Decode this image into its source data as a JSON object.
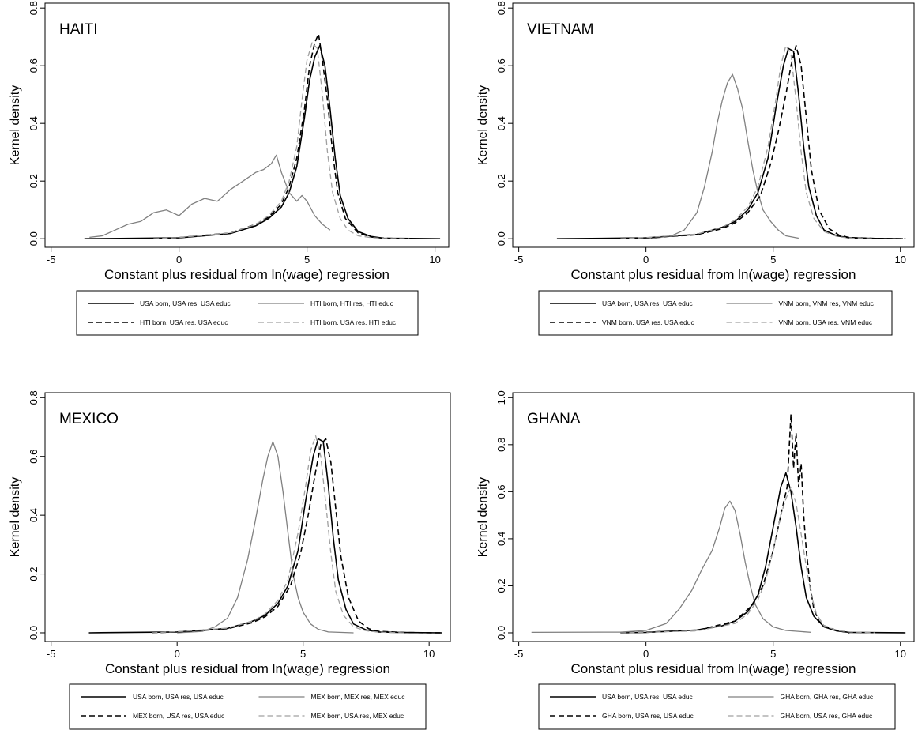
{
  "chart_data": [
    {
      "type": "line",
      "title": "HAITI",
      "xlabel": "Constant plus residual from ln(wage) regression",
      "ylabel": "Kernel density",
      "xlim": [
        -5,
        10.3
      ],
      "ylim": [
        0,
        0.8
      ],
      "xticks": [
        "-5",
        "0",
        "5",
        "10"
      ],
      "yticks": [
        "0.0",
        "0.2",
        "0.4",
        "0.6",
        "0.8"
      ],
      "legend": "bottom",
      "series": [
        {
          "name": "USA born, USA res, USA educ",
          "color": "#000000",
          "dash": "solid",
          "x": [
            -3.7,
            0,
            2,
            3,
            3.5,
            4,
            4.3,
            4.6,
            4.9,
            5.1,
            5.3,
            5.5,
            5.7,
            5.9,
            6.1,
            6.3,
            6.6,
            7.0,
            7.5,
            8.0,
            10.2
          ],
          "y": [
            0,
            0.003,
            0.018,
            0.045,
            0.07,
            0.11,
            0.16,
            0.25,
            0.42,
            0.55,
            0.63,
            0.67,
            0.6,
            0.45,
            0.28,
            0.15,
            0.07,
            0.025,
            0.008,
            0.002,
            0
          ]
        },
        {
          "name": "HTI born, HTI res, HTI educ",
          "color": "#808080",
          "dash": "solid",
          "x": [
            -3.5,
            -3,
            -2.5,
            -2,
            -1.5,
            -1,
            -0.5,
            0,
            0.5,
            1,
            1.5,
            2,
            2.5,
            3,
            3.3,
            3.6,
            3.8,
            4.0,
            4.3,
            4.6,
            4.8,
            5.0,
            5.3,
            5.6,
            5.9
          ],
          "y": [
            0.005,
            0.01,
            0.03,
            0.05,
            0.06,
            0.09,
            0.1,
            0.08,
            0.12,
            0.14,
            0.13,
            0.17,
            0.2,
            0.23,
            0.24,
            0.26,
            0.29,
            0.23,
            0.16,
            0.13,
            0.15,
            0.13,
            0.08,
            0.05,
            0.03
          ]
        },
        {
          "name": "HTI born, USA res, USA educ",
          "color": "#000000",
          "dash": "dashed",
          "x": [
            -1,
            0,
            2,
            3,
            3.5,
            4,
            4.3,
            4.6,
            4.9,
            5.1,
            5.3,
            5.45,
            5.6,
            5.8,
            6.0,
            6.2,
            6.5,
            7.0,
            7.5,
            8.0,
            9.0
          ],
          "y": [
            0,
            0.004,
            0.02,
            0.05,
            0.075,
            0.12,
            0.18,
            0.28,
            0.45,
            0.6,
            0.68,
            0.71,
            0.62,
            0.48,
            0.3,
            0.16,
            0.07,
            0.02,
            0.006,
            0.002,
            0
          ]
        },
        {
          "name": "HTI born, USA res, HTI educ",
          "color": "#a0a0a0",
          "dash": "dashed",
          "x": [
            -1,
            0,
            2,
            3,
            3.5,
            4,
            4.3,
            4.6,
            4.8,
            5.0,
            5.2,
            5.4,
            5.6,
            5.8,
            6.0,
            6.3,
            6.6,
            7.0,
            7.5,
            8.0,
            9.0
          ],
          "y": [
            0,
            0.004,
            0.02,
            0.05,
            0.08,
            0.13,
            0.2,
            0.32,
            0.48,
            0.62,
            0.68,
            0.66,
            0.5,
            0.3,
            0.16,
            0.07,
            0.03,
            0.01,
            0.004,
            0.001,
            0
          ]
        }
      ]
    },
    {
      "type": "line",
      "title": "VIETNAM",
      "xlabel": "Constant plus residual from ln(wage) regression",
      "ylabel": "Kernel density",
      "xlim": [
        -5,
        10.3
      ],
      "ylim": [
        0,
        0.8
      ],
      "xticks": [
        "-5",
        "0",
        "5",
        "10"
      ],
      "yticks": [
        "0.0",
        "0.2",
        "0.4",
        "0.6",
        "0.8"
      ],
      "legend": "bottom",
      "series": [
        {
          "name": "USA born, USA res, USA educ",
          "color": "#000000",
          "dash": "solid",
          "x": [
            -3.5,
            0,
            2,
            3,
            3.5,
            4,
            4.4,
            4.8,
            5.1,
            5.4,
            5.6,
            5.8,
            6.0,
            6.2,
            6.4,
            6.7,
            7.0,
            7.5,
            8.0,
            9.0,
            10.1
          ],
          "y": [
            0,
            0.003,
            0.015,
            0.04,
            0.06,
            0.1,
            0.16,
            0.28,
            0.45,
            0.6,
            0.66,
            0.65,
            0.5,
            0.32,
            0.18,
            0.08,
            0.03,
            0.01,
            0.003,
            0.001,
            0
          ]
        },
        {
          "name": "VNM born, VNM res, VNM educ",
          "color": "#808080",
          "dash": "solid",
          "x": [
            0.2,
            1,
            1.5,
            2.0,
            2.3,
            2.6,
            2.8,
            3.0,
            3.2,
            3.4,
            3.6,
            3.8,
            4.0,
            4.2,
            4.4,
            4.6,
            4.9,
            5.2,
            5.5,
            6.0
          ],
          "y": [
            0,
            0.01,
            0.03,
            0.09,
            0.18,
            0.3,
            0.4,
            0.48,
            0.54,
            0.57,
            0.52,
            0.45,
            0.34,
            0.24,
            0.16,
            0.1,
            0.06,
            0.03,
            0.01,
            0.002
          ]
        },
        {
          "name": "VNM born, USA res, USA educ",
          "color": "#000000",
          "dash": "dashed",
          "x": [
            -1,
            0,
            2,
            3,
            3.5,
            4,
            4.5,
            4.9,
            5.2,
            5.5,
            5.7,
            5.9,
            6.1,
            6.3,
            6.5,
            6.8,
            7.2,
            7.6,
            8.0,
            9.0,
            10.2
          ],
          "y": [
            0,
            0.003,
            0.014,
            0.035,
            0.055,
            0.09,
            0.15,
            0.26,
            0.37,
            0.5,
            0.6,
            0.67,
            0.6,
            0.42,
            0.24,
            0.1,
            0.035,
            0.012,
            0.004,
            0.001,
            0
          ]
        },
        {
          "name": "VNM born, USA res, VNM educ",
          "color": "#a0a0a0",
          "dash": "dashed",
          "x": [
            -1,
            0,
            2,
            3,
            3.5,
            4,
            4.4,
            4.8,
            5.1,
            5.3,
            5.5,
            5.7,
            5.9,
            6.1,
            6.3,
            6.6,
            7.0,
            7.5,
            8.0,
            9.0
          ],
          "y": [
            0,
            0.004,
            0.016,
            0.04,
            0.065,
            0.11,
            0.18,
            0.32,
            0.48,
            0.6,
            0.67,
            0.64,
            0.48,
            0.3,
            0.16,
            0.07,
            0.025,
            0.008,
            0.002,
            0
          ]
        }
      ]
    },
    {
      "type": "line",
      "title": "MEXICO",
      "xlabel": "Constant plus residual from ln(wage) regression",
      "ylabel": "Kernel density",
      "xlim": [
        -5,
        10.6
      ],
      "ylim": [
        0,
        0.8
      ],
      "xticks": [
        "-5",
        "0",
        "5",
        "10"
      ],
      "yticks": [
        "0.0",
        "0.2",
        "0.4",
        "0.6",
        "0.8"
      ],
      "legend": "bottom",
      "series": [
        {
          "name": "USA born, USA res, USA educ",
          "color": "#000000",
          "dash": "solid",
          "x": [
            -3.5,
            0,
            2,
            3,
            3.5,
            4,
            4.4,
            4.8,
            5.1,
            5.4,
            5.6,
            5.8,
            6.0,
            6.2,
            6.4,
            6.7,
            7.0,
            7.5,
            8.0,
            9.0,
            10.5
          ],
          "y": [
            0,
            0.003,
            0.015,
            0.04,
            0.06,
            0.1,
            0.16,
            0.28,
            0.45,
            0.6,
            0.66,
            0.65,
            0.5,
            0.32,
            0.18,
            0.08,
            0.03,
            0.01,
            0.003,
            0.001,
            0
          ]
        },
        {
          "name": "MEX born, MEX res, MEX educ",
          "color": "#808080",
          "dash": "solid",
          "x": [
            0,
            1,
            1.5,
            2.0,
            2.4,
            2.8,
            3.1,
            3.4,
            3.6,
            3.8,
            4.0,
            4.2,
            4.4,
            4.6,
            4.8,
            5.0,
            5.3,
            5.6,
            6.0,
            7.0
          ],
          "y": [
            0,
            0.005,
            0.02,
            0.05,
            0.12,
            0.25,
            0.38,
            0.52,
            0.6,
            0.65,
            0.6,
            0.48,
            0.34,
            0.2,
            0.12,
            0.07,
            0.03,
            0.012,
            0.003,
            0
          ]
        },
        {
          "name": "MEX born, USA res, USA educ",
          "color": "#000000",
          "dash": "dashed",
          "x": [
            -1,
            0,
            2,
            3,
            3.5,
            4,
            4.5,
            4.9,
            5.2,
            5.5,
            5.7,
            5.9,
            6.1,
            6.3,
            6.5,
            6.8,
            7.2,
            7.6,
            8.0,
            9.0,
            10.5
          ],
          "y": [
            0,
            0.003,
            0.014,
            0.035,
            0.055,
            0.09,
            0.16,
            0.27,
            0.4,
            0.55,
            0.64,
            0.66,
            0.58,
            0.42,
            0.26,
            0.12,
            0.04,
            0.014,
            0.005,
            0.001,
            0
          ]
        },
        {
          "name": "MEX born, USA res, MEX educ",
          "color": "#a0a0a0",
          "dash": "dashed",
          "x": [
            -1,
            0,
            2,
            3,
            3.5,
            4,
            4.4,
            4.8,
            5.1,
            5.3,
            5.5,
            5.7,
            5.9,
            6.1,
            6.3,
            6.6,
            7.0,
            7.5,
            8.0,
            9.0
          ],
          "y": [
            0,
            0.004,
            0.016,
            0.04,
            0.065,
            0.11,
            0.18,
            0.34,
            0.5,
            0.62,
            0.67,
            0.6,
            0.44,
            0.27,
            0.14,
            0.06,
            0.02,
            0.007,
            0.002,
            0
          ]
        }
      ]
    },
    {
      "type": "line",
      "title": "GHANA",
      "xlabel": "Constant plus residual from ln(wage) regression",
      "ylabel": "Kernel density",
      "xlim": [
        -5,
        10.3
      ],
      "ylim": [
        0,
        1.0
      ],
      "xticks": [
        "-5",
        "0",
        "5",
        "10"
      ],
      "yticks": [
        "0.0",
        "0.2",
        "0.4",
        "0.6",
        "0.8",
        "1.0"
      ],
      "legend": "bottom",
      "series": [
        {
          "name": "USA born, USA res, USA educ",
          "color": "#000000",
          "dash": "solid",
          "x": [
            -1,
            0,
            2,
            3,
            3.5,
            4,
            4.4,
            4.7,
            5.0,
            5.3,
            5.5,
            5.7,
            5.9,
            6.1,
            6.3,
            6.6,
            7.0,
            7.5,
            8.0,
            9.0,
            10.2
          ],
          "y": [
            0,
            0.002,
            0.012,
            0.03,
            0.05,
            0.09,
            0.16,
            0.28,
            0.45,
            0.62,
            0.68,
            0.6,
            0.45,
            0.28,
            0.15,
            0.07,
            0.025,
            0.008,
            0.002,
            0.001,
            0
          ]
        },
        {
          "name": "GHA born, GHA res, GHA educ",
          "color": "#808080",
          "dash": "solid",
          "x": [
            -4.5,
            -1,
            0,
            0.8,
            1.3,
            1.8,
            2.2,
            2.6,
            2.9,
            3.1,
            3.3,
            3.5,
            3.7,
            3.9,
            4.1,
            4.3,
            4.6,
            5.0,
            5.5,
            6.5
          ],
          "y": [
            0.002,
            0.003,
            0.01,
            0.04,
            0.1,
            0.18,
            0.27,
            0.35,
            0.45,
            0.53,
            0.56,
            0.52,
            0.42,
            0.3,
            0.2,
            0.12,
            0.06,
            0.025,
            0.01,
            0.002
          ]
        },
        {
          "name": "GHA born, USA res, USA educ",
          "color": "#000000",
          "dash": "dashed",
          "x": [
            -1,
            2,
            3.5,
            4.2,
            4.6,
            5.0,
            5.3,
            5.55,
            5.7,
            5.8,
            5.9,
            6.0,
            6.1,
            6.2,
            6.3,
            6.45,
            6.6,
            6.8,
            7.0,
            7.5,
            8.0
          ],
          "y": [
            0,
            0.01,
            0.05,
            0.12,
            0.2,
            0.35,
            0.5,
            0.62,
            0.93,
            0.7,
            0.85,
            0.62,
            0.72,
            0.5,
            0.35,
            0.2,
            0.1,
            0.05,
            0.03,
            0.01,
            0
          ]
        },
        {
          "name": "GHA born, USA res, GHA educ",
          "color": "#a0a0a0",
          "dash": "dashed",
          "x": [
            -1,
            2,
            3.5,
            4.0,
            4.4,
            4.7,
            5.0,
            5.3,
            5.5,
            5.7,
            5.9,
            6.1,
            6.3,
            6.5,
            6.7,
            7.0,
            7.5,
            8.0,
            8.5,
            9.0
          ],
          "y": [
            0,
            0.008,
            0.04,
            0.08,
            0.14,
            0.22,
            0.35,
            0.5,
            0.57,
            0.62,
            0.55,
            0.42,
            0.28,
            0.16,
            0.08,
            0.03,
            0.01,
            0.004,
            0.002,
            0
          ]
        }
      ]
    }
  ]
}
